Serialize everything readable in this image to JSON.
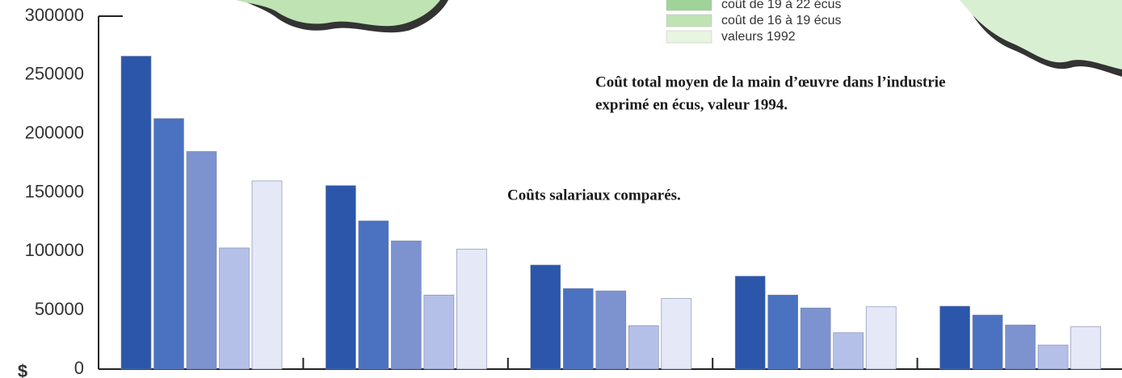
{
  "chart_data": {
    "type": "bar",
    "categories": [
      null,
      null,
      null,
      null,
      null
    ],
    "series": [
      {
        "color": "#2b56aa",
        "values": [
          266000,
          156000,
          88500,
          79000,
          53500
        ]
      },
      {
        "color": "#4a72c1",
        "values": [
          213000,
          126000,
          68500,
          63000,
          46000
        ]
      },
      {
        "color": "#7c93cf",
        "values": [
          185000,
          109000,
          66500,
          52000,
          37500
        ]
      },
      {
        "color": "#b4c0e7",
        "values": [
          103000,
          63000,
          37000,
          31000,
          20500
        ]
      },
      {
        "color": "#e5e8f7",
        "values": [
          160000,
          102000,
          60000,
          53000,
          36000
        ]
      }
    ],
    "ylim": [
      0,
      300000
    ],
    "yticks": [
      0,
      50000,
      100000,
      150000,
      200000,
      250000,
      300000
    ],
    "y_unit_label": "$",
    "annotations": [
      "Coût total moyen de la main d’œuvre dans l’industrie",
      "exprimé en écus, valeur 1994.",
      "Coûts salariaux comparés."
    ],
    "map_legend": [
      {
        "label": "coût de 19 à 22 écus",
        "color": "#9fd39a"
      },
      {
        "label": "coût de 16 à 19 écus",
        "color": "#bfe3b3"
      },
      {
        "label": "valeurs 1992",
        "color": "#e8f5e0"
      }
    ]
  }
}
